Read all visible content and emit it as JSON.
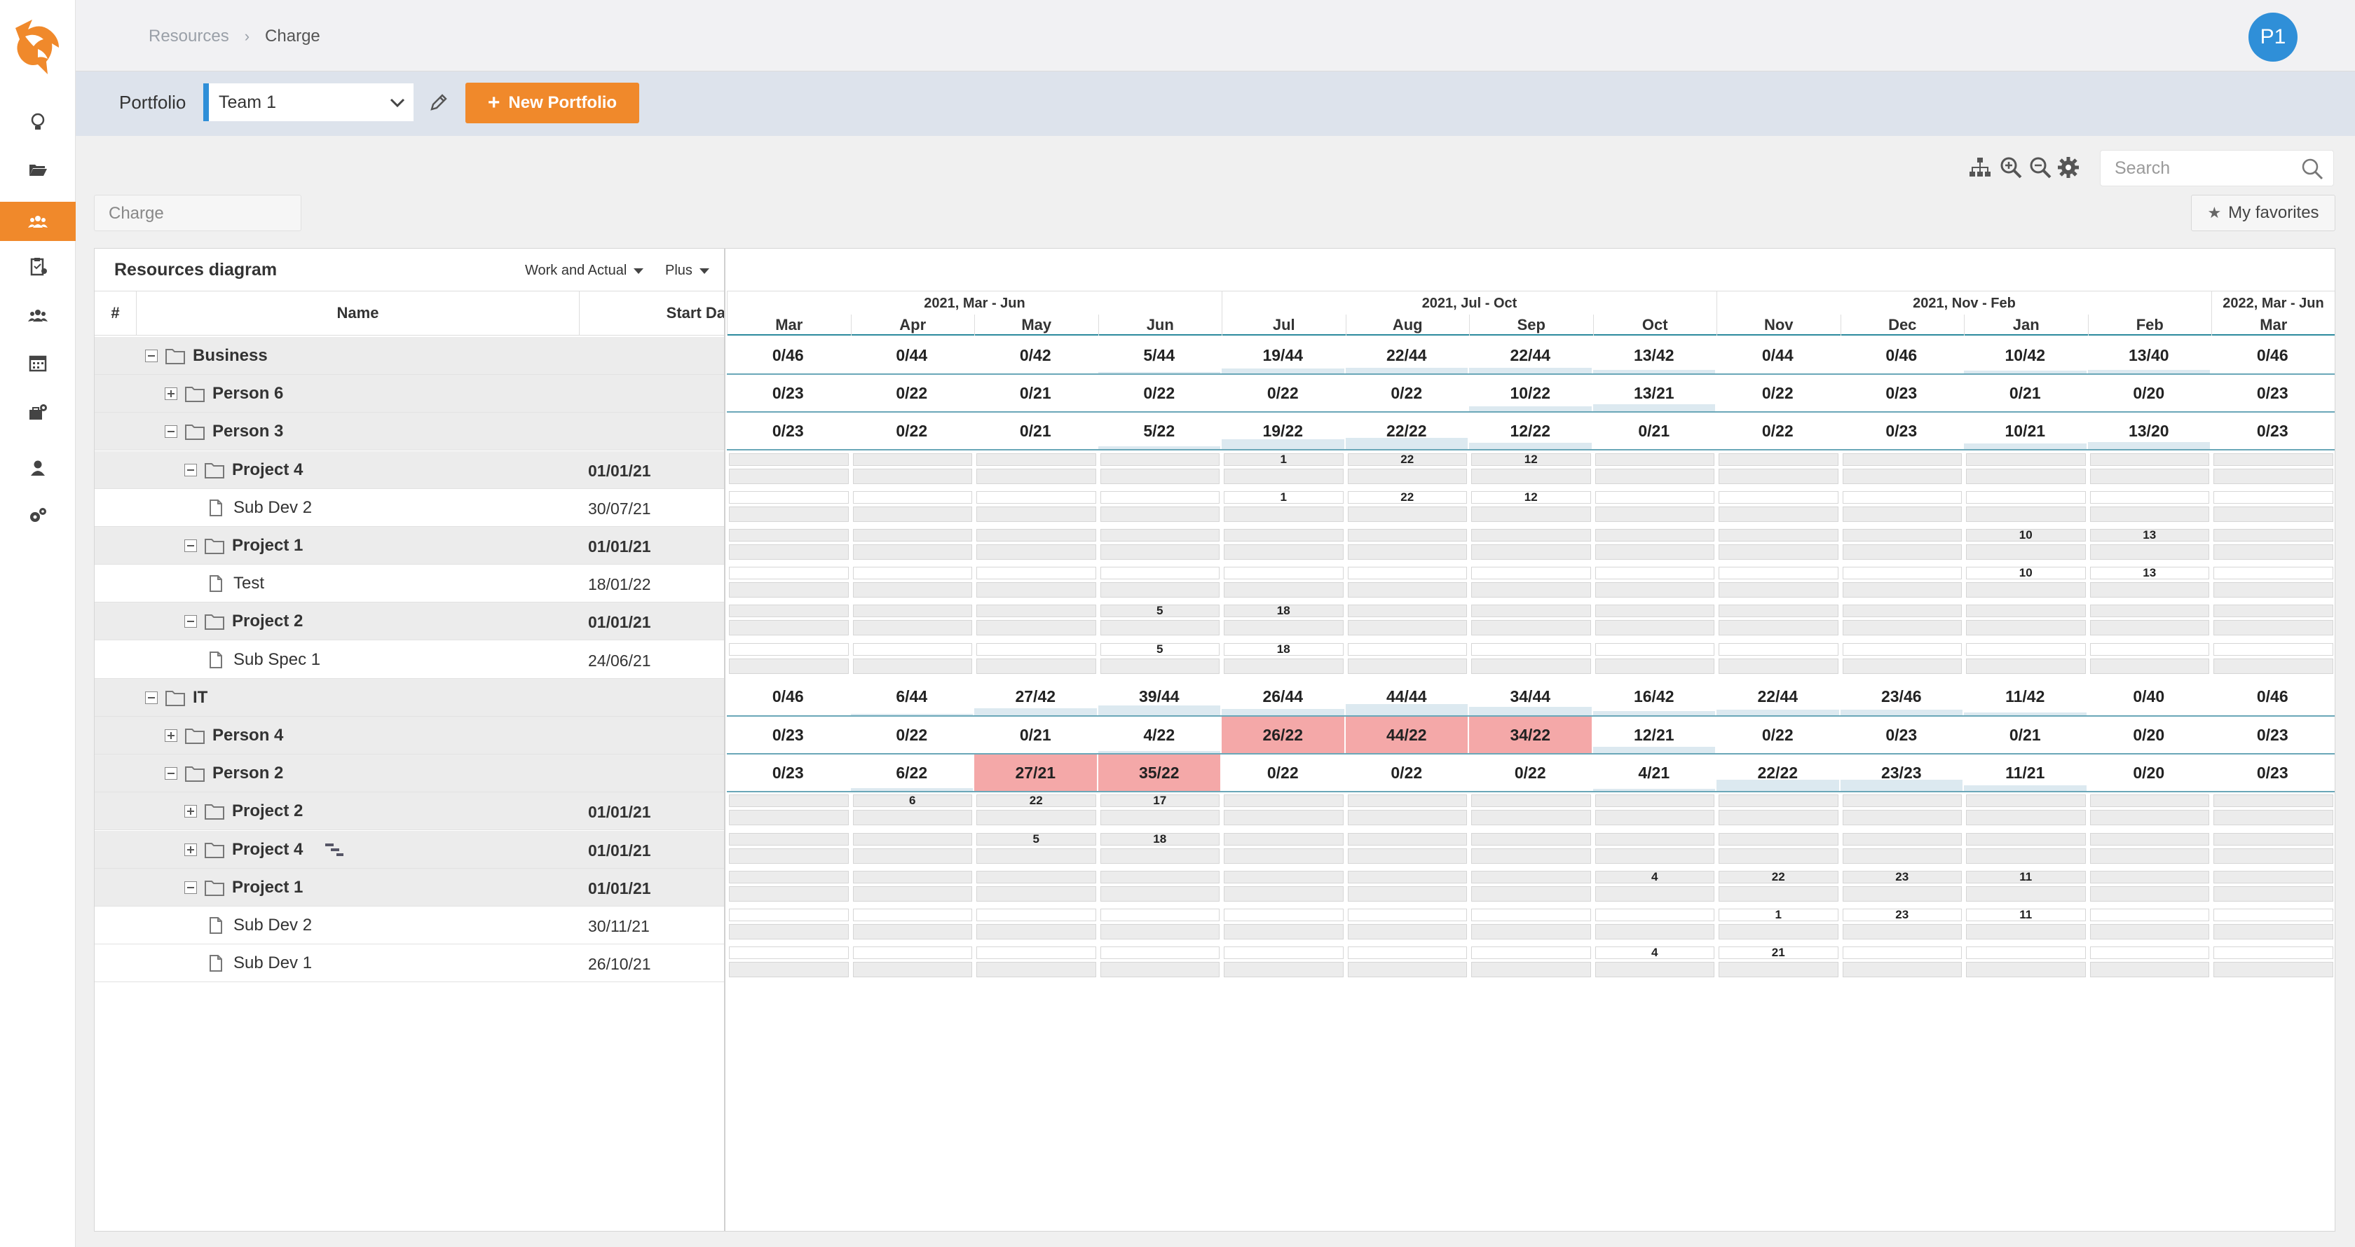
{
  "breadcrumb": {
    "parent": "Resources",
    "current": "Charge"
  },
  "user": {
    "initials": "P1"
  },
  "portfolio": {
    "label": "Portfolio",
    "selected": "Team 1",
    "new_button": "New Portfolio"
  },
  "search": {
    "placeholder": "Search"
  },
  "charge_tab": "Charge",
  "favorites": "My favorites",
  "diagram": {
    "title": "Resources diagram",
    "mode": "Work and Actual",
    "plus": "Plus",
    "columns": {
      "num": "#",
      "name": "Name",
      "start": "Start Da"
    }
  },
  "periods": [
    "2021, Mar - Jun",
    "2021, Jul - Oct",
    "2021, Nov - Feb",
    "2022, Mar - Jun"
  ],
  "months": [
    "Mar",
    "Apr",
    "May",
    "Jun",
    "Jul",
    "Aug",
    "Sep",
    "Oct",
    "Nov",
    "Dec",
    "Jan",
    "Feb",
    "Mar"
  ],
  "rows": [
    {
      "name": "Business",
      "type": "group",
      "level": 0,
      "expanded": true,
      "start": "",
      "cells": [
        "0/46",
        "0/44",
        "0/42",
        "5/44",
        "19/44",
        "22/44",
        "22/44",
        "13/42",
        "0/44",
        "0/46",
        "10/42",
        "13/40",
        "0/46"
      ],
      "fill": [
        0,
        0,
        0,
        0.11,
        0.43,
        0.5,
        0.5,
        0.31,
        0,
        0,
        0.24,
        0.33,
        0
      ],
      "over": [
        false,
        false,
        false,
        false,
        false,
        false,
        false,
        false,
        false,
        false,
        false,
        false,
        false
      ]
    },
    {
      "name": "Person 6",
      "type": "person",
      "level": 1,
      "expanded": false,
      "start": "",
      "cells": [
        "0/23",
        "0/22",
        "0/21",
        "0/22",
        "0/22",
        "0/22",
        "10/22",
        "13/21",
        "0/22",
        "0/23",
        "0/21",
        "0/20",
        "0/23"
      ],
      "fill": [
        0,
        0,
        0,
        0,
        0,
        0,
        0.45,
        0.62,
        0,
        0,
        0,
        0,
        0
      ],
      "over": [
        false,
        false,
        false,
        false,
        false,
        false,
        false,
        false,
        false,
        false,
        false,
        false,
        false
      ]
    },
    {
      "name": "Person 3",
      "type": "person",
      "level": 1,
      "expanded": true,
      "start": "",
      "cells": [
        "0/23",
        "0/22",
        "0/21",
        "5/22",
        "19/22",
        "22/22",
        "12/22",
        "0/21",
        "0/22",
        "0/23",
        "10/21",
        "13/20",
        "0/23"
      ],
      "fill": [
        0,
        0,
        0,
        0.23,
        0.86,
        1,
        0.55,
        0,
        0,
        0,
        0.48,
        0.65,
        0
      ],
      "over": [
        false,
        false,
        false,
        false,
        false,
        false,
        false,
        false,
        false,
        false,
        false,
        false,
        false
      ]
    },
    {
      "name": "Project 4",
      "type": "project",
      "level": 2,
      "expanded": true,
      "start": "01/01/21",
      "cells": [
        "",
        "",
        "",
        "",
        "1",
        "22",
        "12",
        "",
        "",
        "",
        "",
        "",
        ""
      ]
    },
    {
      "name": "Sub Dev 2",
      "type": "task",
      "level": 3,
      "start": "30/07/21",
      "cells": [
        "",
        "",
        "",
        "",
        "1",
        "22",
        "12",
        "",
        "",
        "",
        "",
        "",
        ""
      ]
    },
    {
      "name": "Project 1",
      "type": "project",
      "level": 2,
      "expanded": true,
      "start": "01/01/21",
      "cells": [
        "",
        "",
        "",
        "",
        "",
        "",
        "",
        "",
        "",
        "",
        "10",
        "13",
        ""
      ]
    },
    {
      "name": "Test",
      "type": "task",
      "level": 3,
      "start": "18/01/22",
      "cells": [
        "",
        "",
        "",
        "",
        "",
        "",
        "",
        "",
        "",
        "",
        "10",
        "13",
        ""
      ]
    },
    {
      "name": "Project 2",
      "type": "project",
      "level": 2,
      "expanded": true,
      "start": "01/01/21",
      "cells": [
        "",
        "",
        "",
        "5",
        "18",
        "",
        "",
        "",
        "",
        "",
        "",
        "",
        ""
      ]
    },
    {
      "name": "Sub Spec 1",
      "type": "task",
      "level": 3,
      "start": "24/06/21",
      "cells": [
        "",
        "",
        "",
        "5",
        "18",
        "",
        "",
        "",
        "",
        "",
        "",
        "",
        ""
      ]
    },
    {
      "name": "IT",
      "type": "group",
      "level": 0,
      "expanded": true,
      "start": "",
      "cells": [
        "0/46",
        "6/44",
        "27/42",
        "39/44",
        "26/44",
        "44/44",
        "34/44",
        "16/42",
        "22/44",
        "23/46",
        "11/42",
        "0/40",
        "0/46"
      ],
      "fill": [
        0,
        0.14,
        0.64,
        0.89,
        0.59,
        1,
        0.77,
        0.38,
        0.5,
        0.5,
        0.26,
        0,
        0
      ],
      "over": [
        false,
        false,
        false,
        false,
        false,
        false,
        false,
        false,
        false,
        false,
        false,
        false,
        false
      ]
    },
    {
      "name": "Person 4",
      "type": "person",
      "level": 1,
      "expanded": false,
      "start": "",
      "cells": [
        "0/23",
        "0/22",
        "0/21",
        "4/22",
        "26/22",
        "44/22",
        "34/22",
        "12/21",
        "0/22",
        "0/23",
        "0/21",
        "0/20",
        "0/23"
      ],
      "fill": [
        0,
        0,
        0,
        0.18,
        1,
        1,
        1,
        0.57,
        0,
        0,
        0,
        0,
        0
      ],
      "over": [
        false,
        false,
        false,
        false,
        true,
        true,
        true,
        false,
        false,
        false,
        false,
        false,
        false
      ]
    },
    {
      "name": "Person 2",
      "type": "person",
      "level": 1,
      "expanded": true,
      "start": "",
      "cells": [
        "0/23",
        "6/22",
        "27/21",
        "35/22",
        "0/22",
        "0/22",
        "0/22",
        "4/21",
        "22/22",
        "23/23",
        "11/21",
        "0/20",
        "0/23"
      ],
      "fill": [
        0,
        0.27,
        1,
        1,
        0,
        0,
        0,
        0.19,
        1,
        1,
        0.52,
        0,
        0
      ],
      "over": [
        false,
        false,
        true,
        true,
        false,
        false,
        false,
        false,
        false,
        false,
        false,
        false,
        false
      ]
    },
    {
      "name": "Project 2",
      "type": "project",
      "level": 2,
      "expanded": false,
      "start": "01/01/21",
      "cells": [
        "",
        "6",
        "22",
        "17",
        "",
        "",
        "",
        "",
        "",
        "",
        "",
        "",
        ""
      ]
    },
    {
      "name": "Project 4",
      "type": "project",
      "level": 2,
      "expanded": false,
      "start": "01/01/21",
      "link": true,
      "cells": [
        "",
        "",
        "5",
        "18",
        "",
        "",
        "",
        "",
        "",
        "",
        "",
        "",
        ""
      ]
    },
    {
      "name": "Project 1",
      "type": "project",
      "level": 2,
      "expanded": true,
      "start": "01/01/21",
      "cells": [
        "",
        "",
        "",
        "",
        "",
        "",
        "",
        "4",
        "22",
        "23",
        "11",
        "",
        ""
      ]
    },
    {
      "name": "Sub Dev 2",
      "type": "task",
      "level": 3,
      "start": "30/11/21",
      "cells": [
        "",
        "",
        "",
        "",
        "",
        "",
        "",
        "",
        "1",
        "23",
        "11",
        "",
        ""
      ]
    },
    {
      "name": "Sub Dev 1",
      "type": "task",
      "level": 3,
      "start": "26/10/21",
      "cells": [
        "",
        "",
        "",
        "",
        "",
        "",
        "",
        "4",
        "21",
        "",
        "",
        "",
        ""
      ]
    }
  ],
  "colors": {
    "accent": "#f0892b",
    "primary": "#2f8fd8",
    "over": "#f4a8a8",
    "fill": "#dce9f0"
  }
}
